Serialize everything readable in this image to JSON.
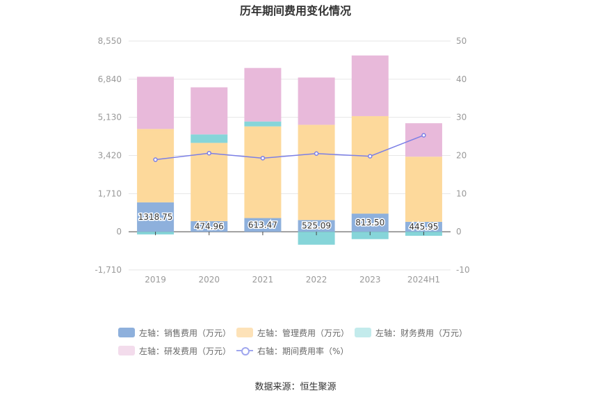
{
  "chart_data": {
    "type": "bar",
    "title": "历年期间费用变化情况",
    "categories": [
      "2019",
      "2020",
      "2021",
      "2022",
      "2023",
      "2024H1"
    ],
    "y_left": {
      "ticks": [
        "8,550",
        "6,840",
        "5,130",
        "3,420",
        "1,710",
        "0",
        "-1,710"
      ],
      "ylim": [
        -1710,
        8550
      ]
    },
    "y_right": {
      "ticks": [
        "50",
        "40",
        "30",
        "20",
        "10",
        "0",
        "-10"
      ],
      "ylim": [
        -10,
        50
      ]
    },
    "series": [
      {
        "name": "左轴：销售费用（万元）",
        "axis": "left",
        "color": "#8eb0dc",
        "values": [
          1318.75,
          474.96,
          613.47,
          525.09,
          813.5,
          445.95
        ],
        "labels": [
          "1318.75",
          "474.96",
          "613.47",
          "525.09",
          "813.50",
          "445.95"
        ]
      },
      {
        "name": "左轴：管理费用（万元）",
        "axis": "left",
        "color": "#fdd99b",
        "values": [
          3290,
          3510,
          4110,
          4270,
          4370,
          2920
        ]
      },
      {
        "name": "左轴：财务费用（万元）",
        "axis": "left",
        "color": "#86d5d9",
        "values": [
          -120,
          380,
          220,
          -580,
          -330,
          -180
        ]
      },
      {
        "name": "左轴：研发费用（万元）",
        "axis": "left",
        "color": "#e8b9da",
        "values": [
          2340,
          2110,
          2400,
          2120,
          2720,
          1500
        ]
      },
      {
        "name": "右轴：期间费用率（%）",
        "axis": "right",
        "type": "line",
        "color": "#7b7fe6",
        "values": [
          18.9,
          20.6,
          19.3,
          20.5,
          19.8,
          25.3
        ]
      }
    ],
    "legend_position": "bottom",
    "grid": true
  },
  "legend": [
    {
      "label": "左轴：销售费用（万元）",
      "color": "#8eb0dc",
      "kind": "bar"
    },
    {
      "label": "左轴：管理费用（万元）",
      "color": "#fde2b8",
      "kind": "bar"
    },
    {
      "label": "左轴：财务费用（万元）",
      "color": "#c3ebec",
      "kind": "bar"
    },
    {
      "label": "左轴：研发费用（万元）",
      "color": "#f3dcec",
      "kind": "bar"
    },
    {
      "label": "右轴：期间费用率（%）",
      "color": "#9fa6ee",
      "kind": "line"
    }
  ],
  "source": "数据来源：恒生聚源"
}
